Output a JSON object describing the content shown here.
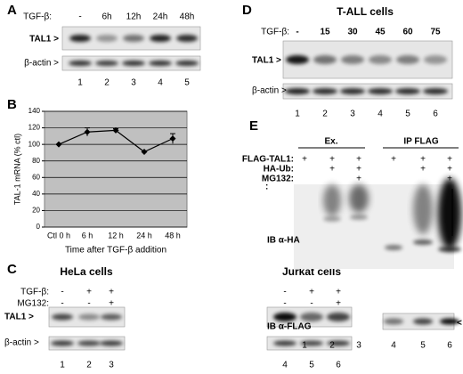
{
  "chart_data": {
    "type": "line",
    "panel_label": "B",
    "y_label": "TAL-1 mRNA (% ctl)",
    "x_label": "Time after TGF-β addition",
    "categories": [
      "Ctl 0 h",
      "6 h",
      "12 h",
      "24 h",
      "48 h"
    ],
    "values": [
      100,
      115,
      117,
      91,
      107
    ],
    "errors": [
      0,
      5,
      2,
      0,
      6
    ],
    "color": "#000000",
    "ylim": [
      0,
      140
    ],
    "yticks": [
      0,
      20,
      40,
      60,
      80,
      100,
      120,
      140
    ],
    "grid": true
  },
  "panels": {
    "A": {
      "label": "A",
      "treatment": "TGF-β:",
      "conditions": [
        "-",
        "6h",
        "12h",
        "24h",
        "48h"
      ],
      "blots": [
        "TAL1 >",
        "β-actin >"
      ],
      "lanes": [
        "1",
        "2",
        "3",
        "4",
        "5"
      ]
    },
    "C": {
      "label": "C",
      "cells": [
        "HeLa cells",
        "Jurkat cells"
      ],
      "rows": [
        {
          "name": "TGF-β:",
          "signs": [
            "-",
            "+",
            "+",
            "-",
            "+",
            "+"
          ]
        },
        {
          "name": "MG132:",
          "signs": [
            "-",
            "-",
            "+",
            "-",
            "-",
            "+"
          ]
        }
      ],
      "blots": [
        "TAL1 >",
        "β-actin >"
      ],
      "lanes": [
        "1",
        "2",
        "3",
        "4",
        "5",
        "6"
      ]
    },
    "D": {
      "label": "D",
      "title": "T-ALL cells",
      "treatment": "TGF-β:",
      "conditions": [
        "-",
        "15",
        "30",
        "45",
        "60",
        "75"
      ],
      "blots": [
        "TAL1 >",
        "β-actin >"
      ],
      "lanes": [
        "1",
        "2",
        "3",
        "4",
        "5",
        "6"
      ]
    },
    "E": {
      "label": "E",
      "groups": [
        "Ex.",
        "IP FLAG"
      ],
      "rows": [
        {
          "name": "FLAG-TAL1:",
          "signs": [
            "+",
            "+",
            "+",
            "+",
            "+",
            "+"
          ]
        },
        {
          "name": "HA-Ub:",
          "signs": [
            null,
            "+",
            "+",
            null,
            "+",
            "+"
          ]
        },
        {
          "name": "MG132:",
          "signs": [
            null,
            null,
            "+",
            null,
            null,
            "+"
          ]
        }
      ],
      "colon": ":",
      "blots": [
        "IB α-HA",
        "IB α-FLAG"
      ],
      "arrow": "<",
      "lanes": [
        "1",
        "2",
        "3",
        "4",
        "5",
        "6"
      ]
    }
  }
}
